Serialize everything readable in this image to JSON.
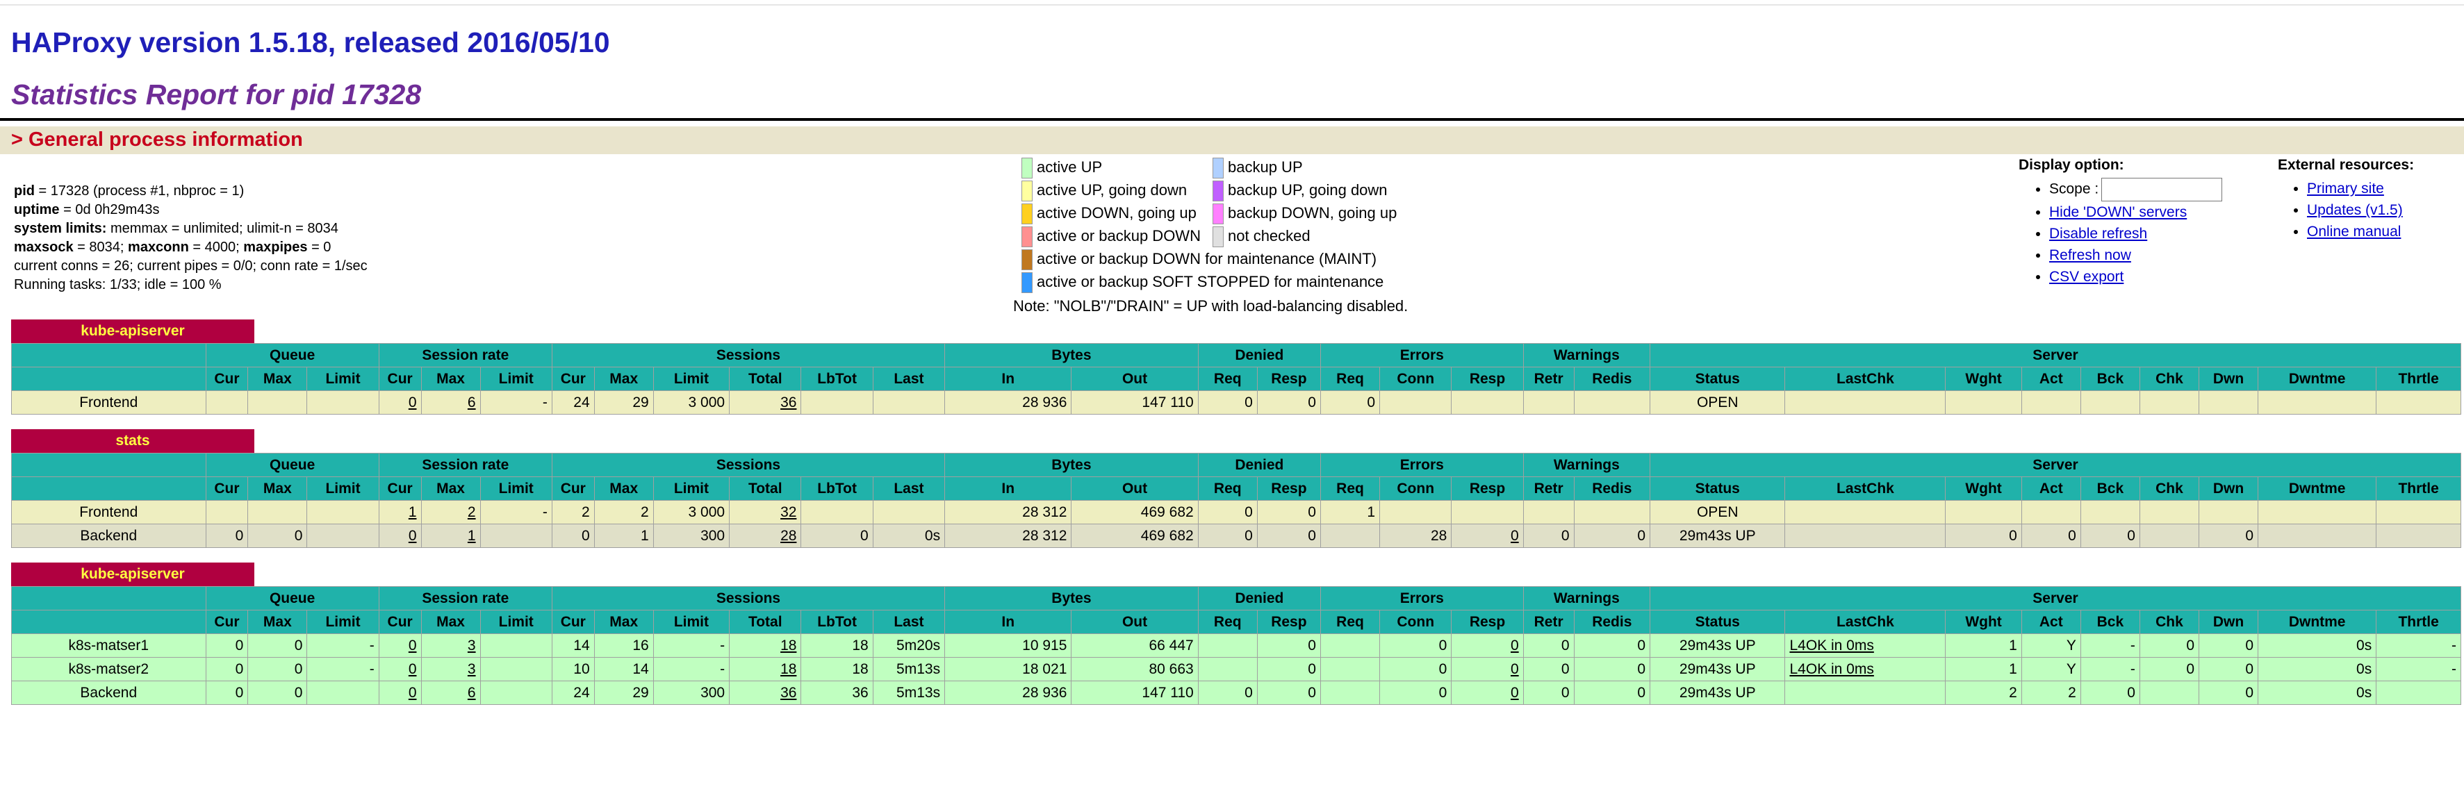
{
  "header": {
    "title": "HAProxy version 1.5.18, released 2016/05/10",
    "subtitle": "Statistics Report for pid 17328",
    "section": "> General process information"
  },
  "process_info": {
    "pid_label": "pid",
    "pid_value": " = 17328 (process #1, nbproc = 1)",
    "uptime_label": "uptime",
    "uptime_value": " = 0d 0h29m43s",
    "limits_label": "system limits:",
    "limits_value": " memmax = unlimited; ulimit-n = 8034",
    "maxsock_label": "maxsock",
    "maxsock_value": " = 8034; ",
    "maxconn_label": "maxconn",
    "maxconn_value": " = 4000; ",
    "maxpipes_label": "maxpipes",
    "maxpipes_value": " = 0",
    "current": "current conns = 26; current pipes = 0/0; conn rate = 1/sec",
    "running": "Running tasks: 1/33; idle = 100 %"
  },
  "legend": {
    "items": [
      {
        "label": "active UP",
        "color": "#c0ffc0"
      },
      {
        "label": "active UP, going down",
        "color": "#ffffa0"
      },
      {
        "label": "active DOWN, going up",
        "color": "#ffd020"
      },
      {
        "label": "active or backup DOWN",
        "color": "#ff9090"
      },
      {
        "label": "active or backup DOWN for maintenance (MAINT)",
        "color": "#c07820"
      },
      {
        "label": "active or backup SOFT STOPPED for maintenance",
        "color": "#3399ff"
      },
      {
        "label": "backup UP",
        "color": "#b0d0ff"
      },
      {
        "label": "backup UP, going down",
        "color": "#c060ff"
      },
      {
        "label": "backup DOWN, going up",
        "color": "#ff80ff"
      },
      {
        "label": "not checked",
        "color": "#e0e0e0"
      }
    ],
    "note": "Note: \"NOLB\"/\"DRAIN\" = UP with load-balancing disabled."
  },
  "display": {
    "heading": "Display option:",
    "scope_label": "Scope :",
    "links": [
      "Hide 'DOWN' servers",
      "Disable refresh",
      "Refresh now",
      "CSV export"
    ]
  },
  "external": {
    "heading": "External resources:",
    "links": [
      "Primary site",
      "Updates (v1.5)",
      "Online manual"
    ]
  },
  "columns": {
    "groups": [
      "Queue",
      "Session rate",
      "Sessions",
      "Bytes",
      "Denied",
      "Errors",
      "Warnings",
      "Server"
    ],
    "sub": [
      "Cur",
      "Max",
      "Limit",
      "Cur",
      "Max",
      "Limit",
      "Cur",
      "Max",
      "Limit",
      "Total",
      "LbTot",
      "Last",
      "In",
      "Out",
      "Req",
      "Resp",
      "Req",
      "Conn",
      "Resp",
      "Retr",
      "Redis",
      "Status",
      "LastChk",
      "Wght",
      "Act",
      "Bck",
      "Chk",
      "Dwn",
      "Dwntme",
      "Thrtle"
    ]
  },
  "proxies": [
    {
      "name": "kube-apiserver",
      "rows": [
        {
          "type": "fe",
          "cells": [
            "Frontend",
            "",
            "",
            "",
            "0",
            "6",
            "-",
            "24",
            "29",
            "3 000",
            "36",
            "",
            "",
            "28 936",
            "147 110",
            "0",
            "0",
            "0",
            "",
            "",
            "",
            "",
            "OPEN",
            "",
            "",
            "",
            "",
            "",
            "",
            "",
            ""
          ]
        }
      ]
    },
    {
      "name": "stats",
      "rows": [
        {
          "type": "fe",
          "cells": [
            "Frontend",
            "",
            "",
            "",
            "1",
            "2",
            "-",
            "2",
            "2",
            "3 000",
            "32",
            "",
            "",
            "28 312",
            "469 682",
            "0",
            "0",
            "1",
            "",
            "",
            "",
            "",
            "OPEN",
            "",
            "",
            "",
            "",
            "",
            "",
            "",
            ""
          ]
        },
        {
          "type": "be",
          "cells": [
            "Backend",
            "0",
            "0",
            "",
            "0",
            "1",
            "",
            "0",
            "1",
            "300",
            "28",
            "0",
            "0s",
            "28 312",
            "469 682",
            "0",
            "0",
            "",
            "28",
            "0",
            "0",
            "0",
            "29m43s UP",
            "",
            "0",
            "0",
            "0",
            "",
            "0",
            "",
            ""
          ]
        }
      ]
    },
    {
      "name": "kube-apiserver",
      "rows": [
        {
          "type": "up",
          "cells": [
            "k8s-matser1",
            "0",
            "0",
            "-",
            "0",
            "3",
            "",
            "14",
            "16",
            "-",
            "18",
            "18",
            "5m20s",
            "10 915",
            "66 447",
            "",
            "0",
            "",
            "0",
            "0",
            "0",
            "0",
            "29m43s UP",
            "L4OK in 0ms",
            "1",
            "Y",
            "-",
            "0",
            "0",
            "0s",
            "-"
          ]
        },
        {
          "type": "up",
          "cells": [
            "k8s-matser2",
            "0",
            "0",
            "-",
            "0",
            "3",
            "",
            "10",
            "14",
            "-",
            "18",
            "18",
            "5m13s",
            "18 021",
            "80 663",
            "",
            "0",
            "",
            "0",
            "0",
            "0",
            "0",
            "29m43s UP",
            "L4OK in 0ms",
            "1",
            "Y",
            "-",
            "0",
            "0",
            "0s",
            "-"
          ]
        },
        {
          "type": "up",
          "cells": [
            "Backend",
            "0",
            "0",
            "",
            "0",
            "6",
            "",
            "24",
            "29",
            "300",
            "36",
            "36",
            "5m13s",
            "28 936",
            "147 110",
            "0",
            "0",
            "",
            "0",
            "0",
            "0",
            "0",
            "29m43s UP",
            "",
            "2",
            "2",
            "0",
            "",
            "0",
            "0s",
            ""
          ]
        }
      ]
    }
  ]
}
